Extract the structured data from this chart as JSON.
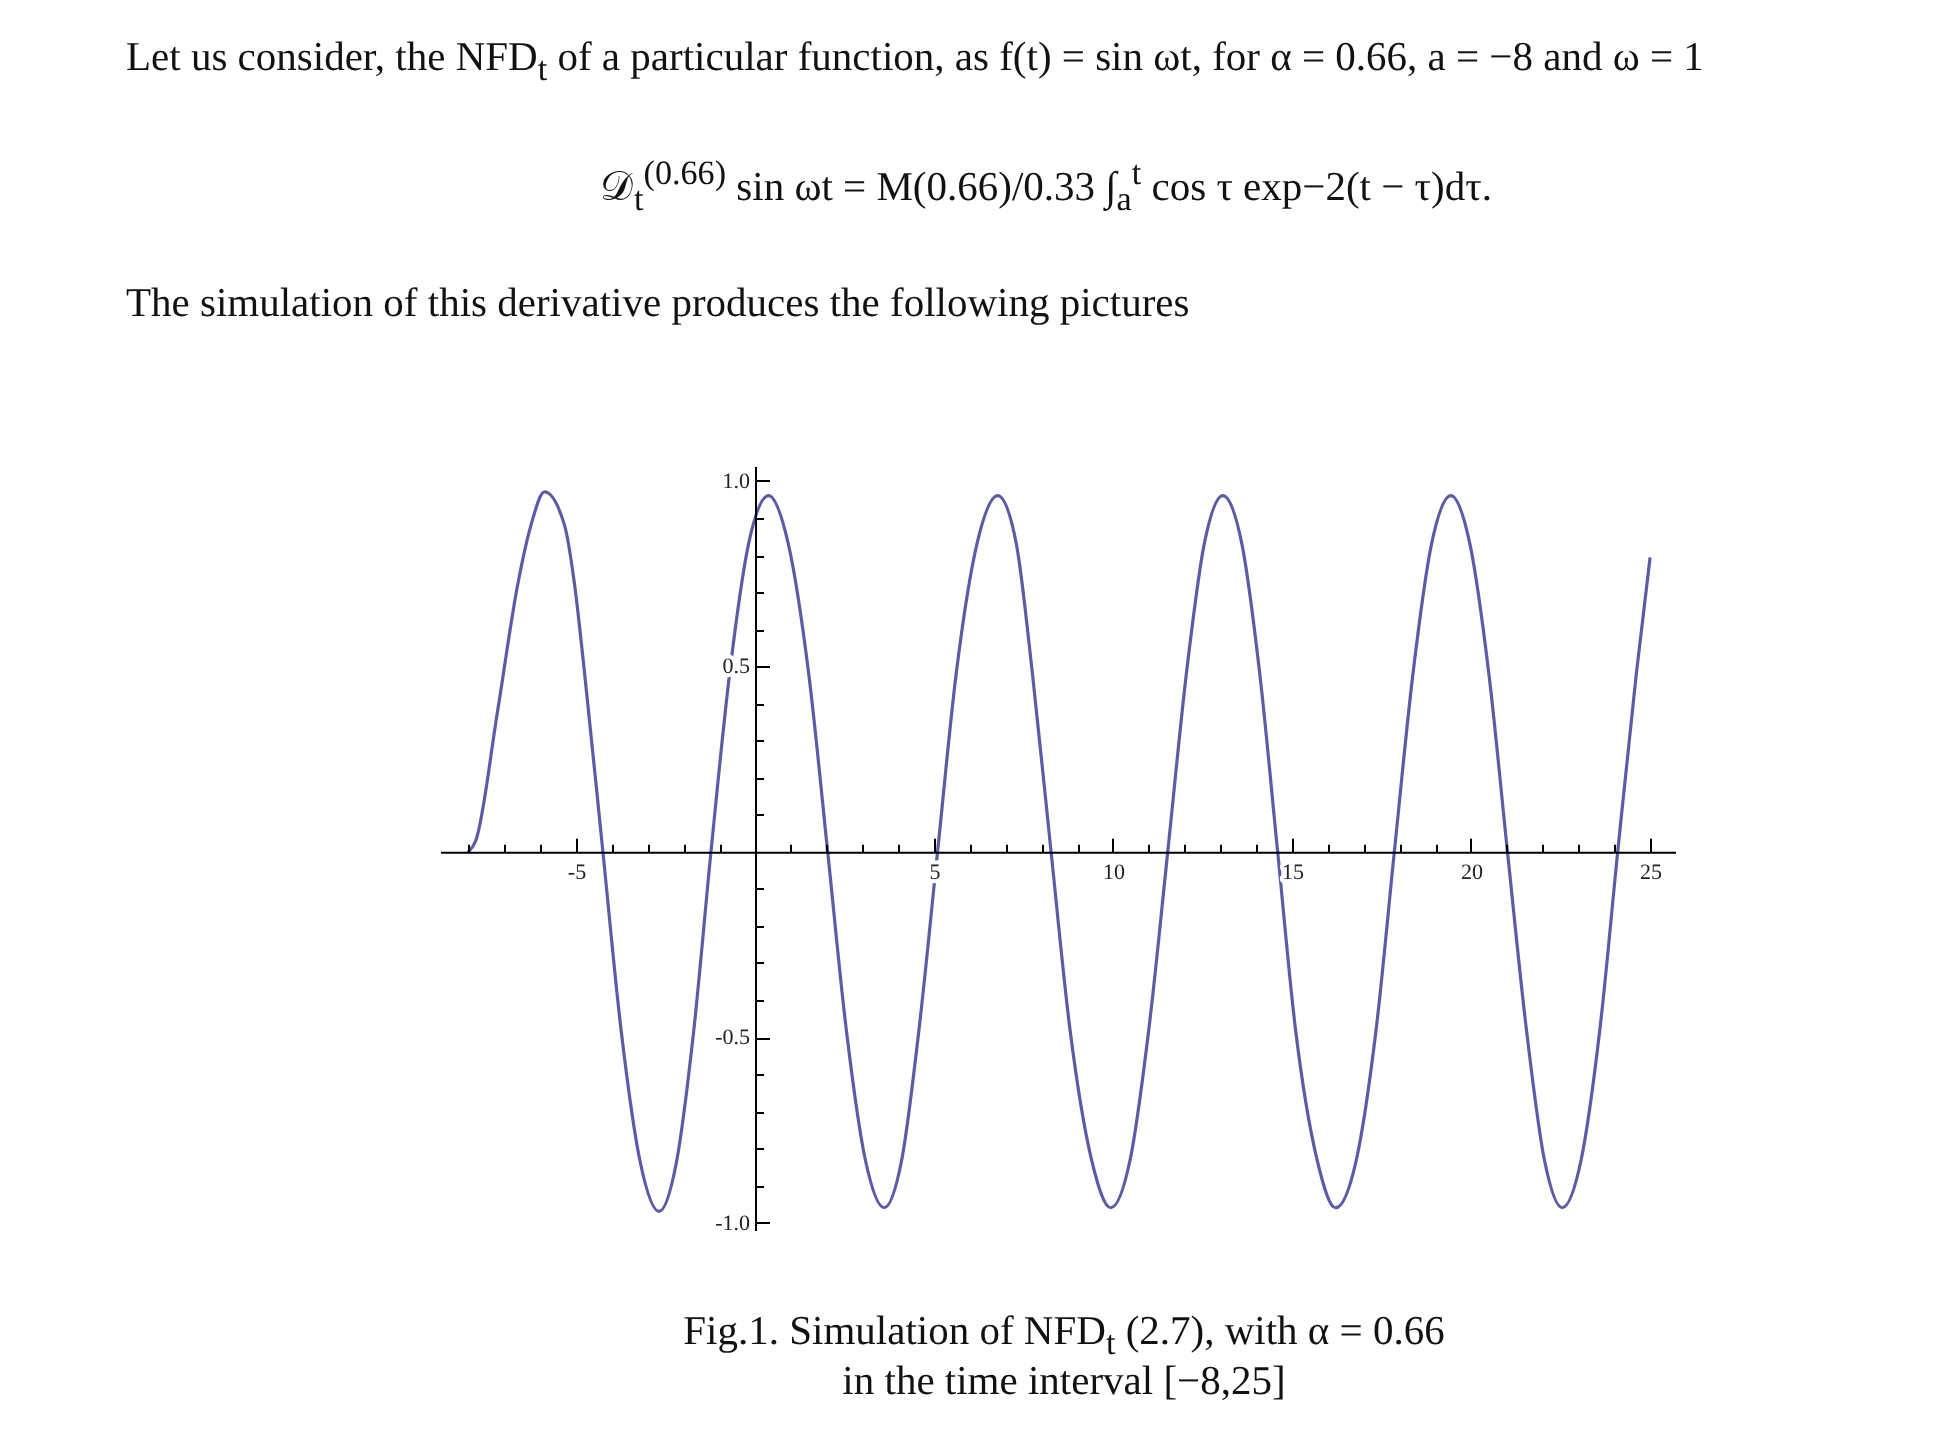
{
  "chart_data": {
    "type": "line",
    "title": "Let us consider, the NFD$_{t}$ of a particular function, as f(t) = sin ωt, for α = 0.66, a = −8 and ω = 1",
    "annotations": [
      "𝒟$_{t}$$^{(0.66)}$ sin ωt = M(0.66)/0.33 ∫$_{a}$$^{t}$ cos τ exp−2(t − τ)dτ.",
      "The simulation of this derivative produces the following pictures",
      "Fig.1. Simulation of NFD$_{t}$ (2.7), with α = 0.66",
      "in the time interval [−8,25]"
    ],
    "x": [
      -8,
      -7.8,
      -7.19,
      -6.63,
      -6.26,
      -5.88,
      -5.32,
      -5.04,
      -4.77,
      -4.25,
      -3.73,
      -3.2,
      -2.68,
      -2.2,
      -1.72,
      -1.23,
      -0.71,
      -0.18,
      0.38,
      0.93,
      1.5,
      2.03,
      2.55,
      3.08,
      3.61,
      4.1,
      4.58,
      5.1,
      5.62,
      6.2,
      6.78,
      7.3,
      7.75,
      8.27,
      8.8,
      9.4,
      9.94,
      10.48,
      11.0,
      11.53,
      12.05,
      12.55,
      13.07,
      13.6,
      14.1,
      14.6,
      15.1,
      15.7,
      16.22,
      16.8,
      17.35,
      17.86,
      18.38,
      18.9,
      19.44,
      19.97,
      20.5,
      21.02,
      21.55,
      22.05,
      22.55,
      23.08,
      23.6,
      24.1,
      24.62,
      25
    ],
    "values": [
      0,
      0.03,
      0.38,
      0.72,
      0.88,
      0.97,
      0.88,
      0.72,
      0.49,
      0,
      -0.49,
      -0.84,
      -0.97,
      -0.84,
      -0.49,
      0,
      0.48,
      0.83,
      0.96,
      0.83,
      0.48,
      0,
      -0.48,
      -0.83,
      -0.96,
      -0.83,
      -0.48,
      0,
      0.48,
      0.83,
      0.96,
      0.83,
      0.48,
      0,
      -0.48,
      -0.83,
      -0.96,
      -0.83,
      -0.48,
      0,
      0.48,
      0.83,
      0.96,
      0.83,
      0.48,
      0,
      -0.48,
      -0.83,
      -0.96,
      -0.83,
      -0.48,
      0,
      0.48,
      0.83,
      0.96,
      0.83,
      0.48,
      0,
      -0.48,
      -0.83,
      -0.96,
      -0.83,
      -0.48,
      0,
      0.48,
      0.79
    ],
    "color": "#5c5ca6",
    "xlim": [
      -8.8,
      25.7
    ],
    "ylim": [
      -1.02,
      1.04
    ],
    "xticks": [
      {
        "value": -8,
        "label": null
      },
      {
        "value": -7,
        "label": null
      },
      {
        "value": -6,
        "label": null
      },
      -5,
      {
        "value": -4,
        "label": null
      },
      {
        "value": -3,
        "label": null
      },
      {
        "value": -2,
        "label": null
      },
      {
        "value": -1,
        "label": null
      },
      {
        "value": 1,
        "label": null
      },
      {
        "value": 2,
        "label": null
      },
      {
        "value": 3,
        "label": null
      },
      {
        "value": 4,
        "label": null
      },
      5,
      {
        "value": 6,
        "label": null
      },
      {
        "value": 7,
        "label": null
      },
      {
        "value": 8,
        "label": null
      },
      {
        "value": 9,
        "label": null
      },
      10,
      {
        "value": 11,
        "label": null
      },
      {
        "value": 12,
        "label": null
      },
      {
        "value": 13,
        "label": null
      },
      {
        "value": 14,
        "label": null
      },
      15,
      {
        "value": 16,
        "label": null
      },
      {
        "value": 17,
        "label": null
      },
      {
        "value": 18,
        "label": null
      },
      {
        "value": 19,
        "label": null
      },
      20,
      {
        "value": 21,
        "label": null
      },
      {
        "value": 22,
        "label": null
      },
      {
        "value": 23,
        "label": null
      },
      {
        "value": 24,
        "label": null
      },
      25
    ],
    "yticks": [
      {
        "value": -1,
        "label": "-1.0"
      },
      {
        "value": -0.9,
        "label": null
      },
      {
        "value": -0.8,
        "label": null
      },
      {
        "value": -0.7,
        "label": null
      },
      {
        "value": -0.6,
        "label": null
      },
      -0.5,
      {
        "value": -0.4,
        "label": null
      },
      {
        "value": -0.3,
        "label": null
      },
      {
        "value": -0.2,
        "label": null
      },
      {
        "value": -0.1,
        "label": null
      },
      {
        "value": 0.1,
        "label": null
      },
      {
        "value": 0.2,
        "label": null
      },
      {
        "value": 0.3,
        "label": null
      },
      {
        "value": 0.4,
        "label": null
      },
      0.5,
      {
        "value": 0.6,
        "label": null
      },
      {
        "value": 0.7,
        "label": null
      },
      {
        "value": 0.8,
        "label": null
      },
      {
        "value": 0.9,
        "label": null
      },
      {
        "value": 1,
        "label": "1.0"
      }
    ]
  }
}
